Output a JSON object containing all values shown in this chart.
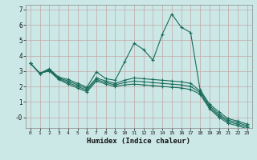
{
  "xlabel": "Humidex (Indice chaleur)",
  "bg_color": "#cce8e6",
  "grid_color": "#c0a8a8",
  "line_color": "#1a6b5a",
  "xlim": [
    -0.5,
    23.5
  ],
  "ylim": [
    -0.7,
    7.3
  ],
  "yticks": [
    0,
    1,
    2,
    3,
    4,
    5,
    6,
    7
  ],
  "ytick_labels": [
    "-0",
    "1",
    "2",
    "3",
    "4",
    "5",
    "6",
    "7"
  ],
  "xticks": [
    0,
    1,
    2,
    3,
    4,
    5,
    6,
    7,
    8,
    9,
    10,
    11,
    12,
    13,
    14,
    15,
    16,
    17,
    18,
    19,
    20,
    21,
    22,
    23
  ],
  "line1_x": [
    0,
    1,
    2,
    3,
    4,
    5,
    6,
    7,
    8,
    9,
    10,
    11,
    12,
    13,
    14,
    15,
    16,
    17,
    18,
    19,
    20,
    21,
    22,
    23
  ],
  "line1_y": [
    3.5,
    2.85,
    3.15,
    2.6,
    2.45,
    2.2,
    1.95,
    2.95,
    2.5,
    2.4,
    3.6,
    4.8,
    4.4,
    3.7,
    5.4,
    6.7,
    5.85,
    5.5,
    1.8,
    0.85,
    0.35,
    -0.1,
    -0.25,
    -0.45
  ],
  "line2_x": [
    0,
    1,
    2,
    3,
    4,
    5,
    6,
    7,
    8,
    9,
    10,
    11,
    12,
    13,
    14,
    15,
    16,
    17,
    18,
    19,
    20,
    21,
    22,
    23
  ],
  "line2_y": [
    3.5,
    2.85,
    3.1,
    2.55,
    2.35,
    2.1,
    1.85,
    2.55,
    2.35,
    2.2,
    2.4,
    2.55,
    2.5,
    2.45,
    2.4,
    2.35,
    2.3,
    2.2,
    1.7,
    0.75,
    0.2,
    -0.2,
    -0.35,
    -0.55
  ],
  "line3_x": [
    0,
    1,
    2,
    3,
    4,
    5,
    6,
    7,
    8,
    9,
    10,
    11,
    12,
    13,
    14,
    15,
    16,
    17,
    18,
    19,
    20,
    21,
    22,
    23
  ],
  "line3_y": [
    3.5,
    2.85,
    3.05,
    2.5,
    2.25,
    2.0,
    1.75,
    2.45,
    2.25,
    2.1,
    2.25,
    2.35,
    2.3,
    2.25,
    2.2,
    2.15,
    2.1,
    2.0,
    1.6,
    0.65,
    0.1,
    -0.3,
    -0.45,
    -0.65
  ],
  "line4_x": [
    0,
    1,
    2,
    3,
    4,
    5,
    6,
    7,
    8,
    9,
    10,
    11,
    12,
    13,
    14,
    15,
    16,
    17,
    18,
    19,
    20,
    21,
    22,
    23
  ],
  "line4_y": [
    3.5,
    2.85,
    3.0,
    2.45,
    2.15,
    1.9,
    1.65,
    2.35,
    2.15,
    2.0,
    2.1,
    2.15,
    2.1,
    2.05,
    2.0,
    1.95,
    1.9,
    1.8,
    1.5,
    0.55,
    0.0,
    -0.4,
    -0.55,
    -0.75
  ]
}
